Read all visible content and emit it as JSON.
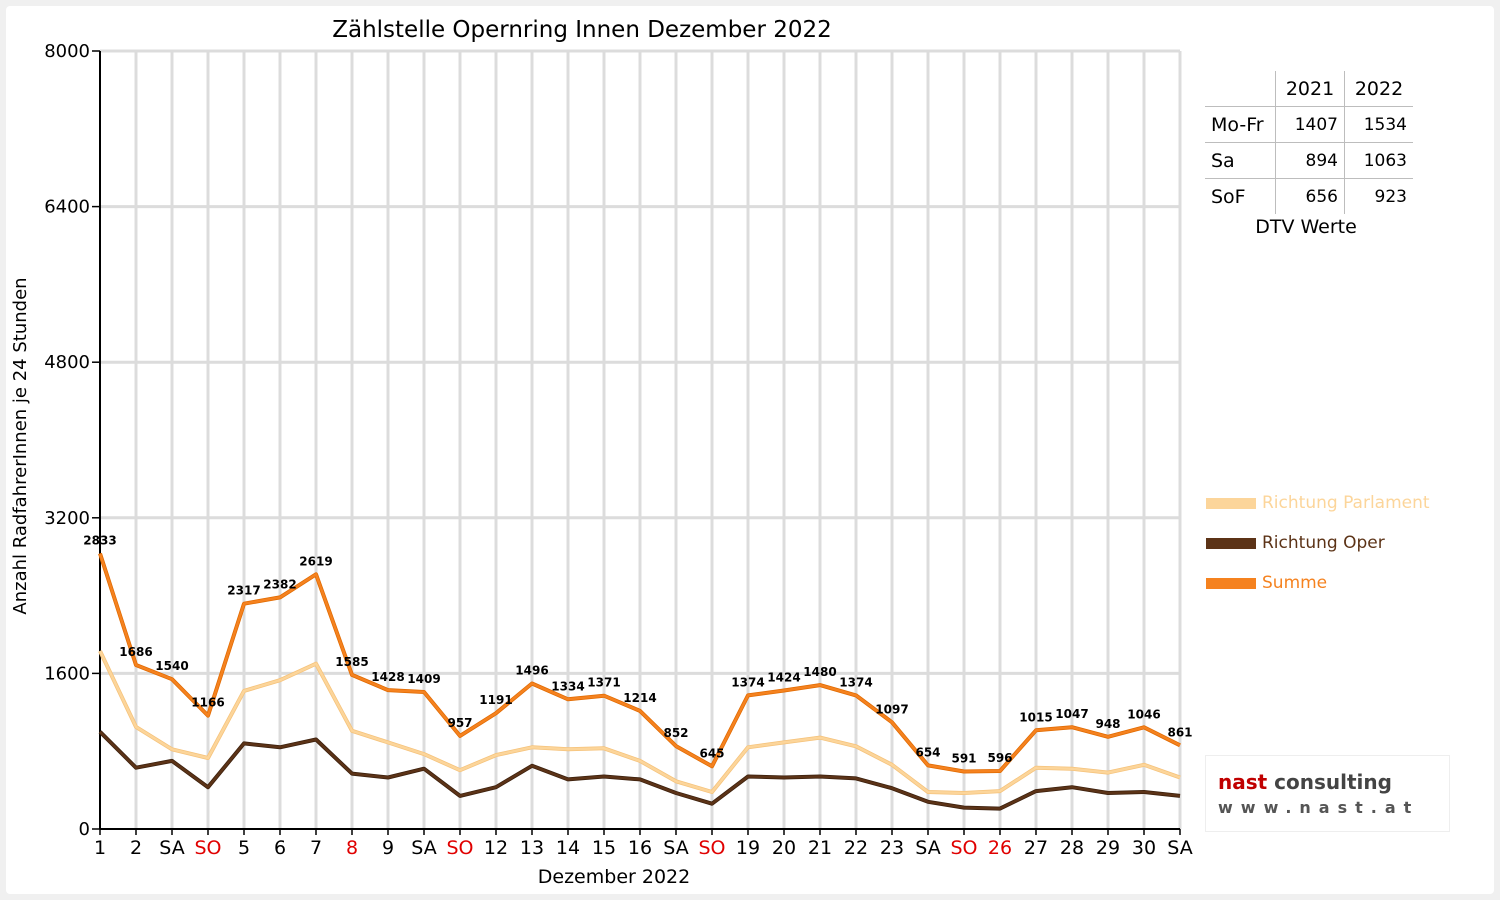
{
  "chart_data": {
    "type": "line",
    "title": "Zählstelle Opernring Innen Dezember 2022",
    "xlabel": "Dezember 2022",
    "ylabel": "Anzahl RadfahrerInnen je 24 Stunden",
    "ylim": [
      0,
      8000
    ],
    "yticks": [
      "0",
      "1600",
      "3200",
      "4800",
      "6400",
      "8000"
    ],
    "grid": true,
    "categories": [
      "1",
      "2",
      "SA",
      "SO",
      "5",
      "6",
      "7",
      "8",
      "9",
      "SA",
      "SO",
      "12",
      "13",
      "14",
      "15",
      "16",
      "SA",
      "SO",
      "19",
      "20",
      "21",
      "22",
      "23",
      "SA",
      "SO",
      "26",
      "27",
      "28",
      "29",
      "30",
      "SA"
    ],
    "category_colors": [
      "#000000",
      "#000000",
      "#000000",
      "#e00000",
      "#000000",
      "#000000",
      "#000000",
      "#e00000",
      "#000000",
      "#000000",
      "#e00000",
      "#000000",
      "#000000",
      "#000000",
      "#000000",
      "#000000",
      "#000000",
      "#e00000",
      "#000000",
      "#000000",
      "#000000",
      "#000000",
      "#000000",
      "#000000",
      "#e00000",
      "#e00000",
      "#000000",
      "#000000",
      "#000000",
      "#000000",
      "#000000"
    ],
    "series": [
      {
        "name": "Richtung Parlament",
        "color": "#fcd59a",
        "values": [
          1830,
          1050,
          820,
          730,
          1420,
          1530,
          1700,
          1010,
          890,
          770,
          605,
          760,
          840,
          820,
          830,
          700,
          490,
          380,
          840,
          890,
          940,
          850,
          660,
          380,
          370,
          390,
          630,
          620,
          580,
          660,
          530
        ]
      },
      {
        "name": "Richtung Oper",
        "color": "#5c3317",
        "values": [
          1000,
          630,
          700,
          430,
          880,
          840,
          920,
          570,
          530,
          620,
          340,
          430,
          650,
          510,
          540,
          510,
          370,
          260,
          540,
          530,
          540,
          520,
          420,
          280,
          220,
          210,
          390,
          430,
          370,
          380,
          340
        ]
      },
      {
        "name": "Summe",
        "color": "#f5821f",
        "values": [
          2833,
          1686,
          1540,
          1166,
          2317,
          2382,
          2619,
          1585,
          1428,
          1409,
          957,
          1191,
          1496,
          1334,
          1371,
          1214,
          852,
          645,
          1374,
          1424,
          1480,
          1374,
          1097,
          654,
          591,
          596,
          1015,
          1047,
          948,
          1046,
          861
        ]
      }
    ],
    "data_labels": [
      "2833",
      "1686",
      "1540",
      "1166",
      "2317",
      "2382",
      "2619",
      "1585",
      "1428",
      "1409",
      "957",
      "1191",
      "1496",
      "1334",
      "1371",
      "1214",
      "852",
      "645",
      "1374",
      "1424",
      "1480",
      "1374",
      "1097",
      "654",
      "591",
      "596",
      "1015",
      "1047",
      "948",
      "1046",
      "861"
    ],
    "legend_position": "right"
  },
  "dtv_table": {
    "years": [
      "2021",
      "2022"
    ],
    "rows": [
      {
        "label": "Mo-Fr",
        "v2021": "1407",
        "v2022": "1534"
      },
      {
        "label": "Sa",
        "v2021": "894",
        "v2022": "1063"
      },
      {
        "label": "SoF",
        "v2021": "656",
        "v2022": "923"
      }
    ],
    "caption": "DTV Werte"
  },
  "logo": {
    "brand_red": "nast",
    "brand_rest": " consulting",
    "url": "www.nast.at"
  }
}
